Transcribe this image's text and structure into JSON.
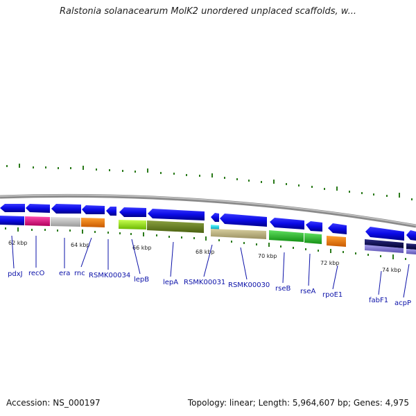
{
  "title": "Ralstonia solanacearum MolK2 unordered unplaced scaffolds, w...",
  "footer": {
    "accession": "Accession: NS_000197",
    "summary": "Topology: linear; Length: 5,964,607 bp; Genes: 4,975"
  },
  "tick_labels": [
    "62 kbp",
    "64 kbp",
    "66 kbp",
    "68 kbp",
    "70 kbp",
    "72 kbp",
    "74 kbp"
  ],
  "gene_labels": [
    "pdxJ",
    "recO",
    "era",
    "rnc",
    "RSMK00034",
    "lepB",
    "lepA",
    "RSMK00031",
    "RSMK00030",
    "rseB",
    "rseA",
    "rpoE1",
    "fabF1",
    "acpP"
  ],
  "colors": {
    "cds": "#0a0ae6",
    "backbone": "#8a8a8a",
    "tick": "#2a7a1a",
    "label": "#0a10a8"
  }
}
